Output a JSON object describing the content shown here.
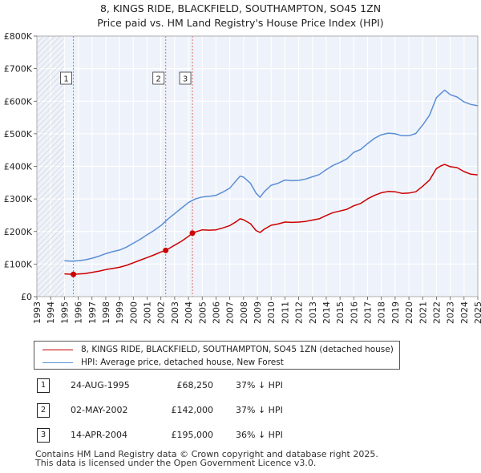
{
  "chart_data": {
    "type": "line",
    "title": "8, KINGS RIDE, BLACKFIELD, SOUTHAMPTON, SO45 1ZN",
    "subtitle": "Price paid vs. HM Land Registry's House Price Index (HPI)",
    "xlim": [
      1993,
      2025
    ],
    "ylim": [
      0,
      800000
    ],
    "x_ticks": [
      "1993",
      "1994",
      "1995",
      "1996",
      "1997",
      "1998",
      "1999",
      "2000",
      "2001",
      "2002",
      "2003",
      "2004",
      "2005",
      "2006",
      "2007",
      "2008",
      "2009",
      "2010",
      "2011",
      "2012",
      "2013",
      "2014",
      "2015",
      "2016",
      "2017",
      "2018",
      "2019",
      "2020",
      "2021",
      "2022",
      "2023",
      "2024",
      "2025"
    ],
    "y_ticks": [
      {
        "value": 0,
        "label": "£0"
      },
      {
        "value": 100000,
        "label": "£100K"
      },
      {
        "value": 200000,
        "label": "£200K"
      },
      {
        "value": 300000,
        "label": "£300K"
      },
      {
        "value": 400000,
        "label": "£400K"
      },
      {
        "value": 500000,
        "label": "£500K"
      },
      {
        "value": 600000,
        "label": "£600K"
      },
      {
        "value": 700000,
        "label": "£700K"
      },
      {
        "value": 800000,
        "label": "£800K"
      }
    ],
    "series": [
      {
        "name": "8, KINGS RIDE, BLACKFIELD, SOUTHAMPTON, SO45 1ZN (detached house)",
        "color": "#cc0000",
        "x": [
          1995.0,
          1995.65,
          1996.0,
          1996.5,
          1997.0,
          1997.5,
          1998.0,
          1998.5,
          1999.0,
          1999.5,
          2000.0,
          2000.5,
          2001.0,
          2001.5,
          2002.0,
          2002.35,
          2002.6,
          2003.0,
          2003.5,
          2004.0,
          2004.29,
          2004.6,
          2005.0,
          2005.5,
          2006.0,
          2006.5,
          2007.0,
          2007.5,
          2007.75,
          2008.0,
          2008.5,
          2008.9,
          2009.2,
          2009.5,
          2010.0,
          2010.5,
          2011.0,
          2011.5,
          2012.0,
          2012.5,
          2013.0,
          2013.5,
          2014.0,
          2014.5,
          2015.0,
          2015.5,
          2016.0,
          2016.5,
          2017.0,
          2017.5,
          2018.0,
          2018.5,
          2019.0,
          2019.5,
          2020.0,
          2020.5,
          2021.0,
          2021.5,
          2022.0,
          2022.3,
          2022.6,
          2023.0,
          2023.5,
          2024.0,
          2024.5,
          2025.0
        ],
        "values": [
          70000,
          68250,
          69500,
          71000,
          74500,
          78000,
          83000,
          86500,
          90000,
          96000,
          104000,
          112000,
          120000,
          128000,
          137000,
          142000,
          148000,
          158000,
          170000,
          185000,
          195000,
          200000,
          205000,
          204000,
          205000,
          211000,
          218000,
          231000,
          239000,
          236000,
          224000,
          203000,
          197000,
          207000,
          219000,
          223000,
          229000,
          228000,
          229000,
          231000,
          235000,
          239000,
          249000,
          258000,
          263000,
          268000,
          279000,
          286000,
          300000,
          311000,
          319000,
          323000,
          322000,
          317000,
          318000,
          322000,
          339000,
          358000,
          393000,
          401000,
          406000,
          399000,
          396000,
          384000,
          376000,
          374000
        ]
      },
      {
        "name": "HPI: Average price, detached house, New Forest",
        "color": "#5b8fd6",
        "x": [
          1995.0,
          1995.5,
          1996.0,
          1996.5,
          1997.0,
          1997.5,
          1998.0,
          1998.5,
          1999.0,
          1999.5,
          2000.0,
          2000.5,
          2001.0,
          2001.5,
          2002.0,
          2002.5,
          2003.0,
          2003.5,
          2004.0,
          2004.5,
          2005.0,
          2005.5,
          2006.0,
          2006.5,
          2007.0,
          2007.5,
          2007.75,
          2008.0,
          2008.5,
          2008.9,
          2009.2,
          2009.5,
          2010.0,
          2010.5,
          2011.0,
          2011.5,
          2012.0,
          2012.5,
          2013.0,
          2013.5,
          2014.0,
          2014.5,
          2015.0,
          2015.5,
          2016.0,
          2016.5,
          2017.0,
          2017.5,
          2018.0,
          2018.5,
          2019.0,
          2019.5,
          2020.0,
          2020.5,
          2021.0,
          2021.5,
          2022.0,
          2022.3,
          2022.6,
          2023.0,
          2023.5,
          2024.0,
          2024.5,
          2025.0
        ],
        "values": [
          110000,
          109000,
          110000,
          113000,
          118000,
          124000,
          132000,
          138000,
          143000,
          152000,
          164000,
          176000,
          190000,
          203000,
          218000,
          238000,
          255000,
          272000,
          289000,
          300000,
          306000,
          308000,
          311000,
          321000,
          333000,
          358000,
          370000,
          367000,
          348000,
          318000,
          305000,
          322000,
          342000,
          348000,
          358000,
          356000,
          357000,
          361000,
          368000,
          375000,
          390000,
          403000,
          412000,
          423000,
          443000,
          452000,
          470000,
          486000,
          497000,
          502000,
          500000,
          494000,
          494000,
          501000,
          527000,
          557000,
          611000,
          623000,
          634000,
          620000,
          613000,
          598000,
          590000,
          586000
        ]
      }
    ],
    "sales": [
      {
        "label": "1",
        "x": 1995.65,
        "value": 68250
      },
      {
        "label": "2",
        "x": 2002.35,
        "value": 142000
      },
      {
        "label": "3",
        "x": 2004.29,
        "value": 195000
      }
    ],
    "prior_data_hatch_until": 1995.0
  },
  "legend": {
    "items": [
      {
        "label": "8, KINGS RIDE, BLACKFIELD, SOUTHAMPTON, SO45 1ZN (detached house)",
        "color": "#cc0000"
      },
      {
        "label": "HPI: Average price, detached house, New Forest",
        "color": "#5b8fd6"
      }
    ]
  },
  "transactions": [
    {
      "num": "1",
      "date": "24-AUG-1995",
      "price": "£68,250",
      "hpi": "37% ↓ HPI"
    },
    {
      "num": "2",
      "date": "02-MAY-2002",
      "price": "£142,000",
      "hpi": "37% ↓ HPI"
    },
    {
      "num": "3",
      "date": "14-APR-2004",
      "price": "£195,000",
      "hpi": "36% ↓ HPI"
    }
  ],
  "footer": {
    "line1": "Contains HM Land Registry data © Crown copyright and database right 2025.",
    "line2": "This data is licensed under the Open Government Licence v3.0."
  }
}
